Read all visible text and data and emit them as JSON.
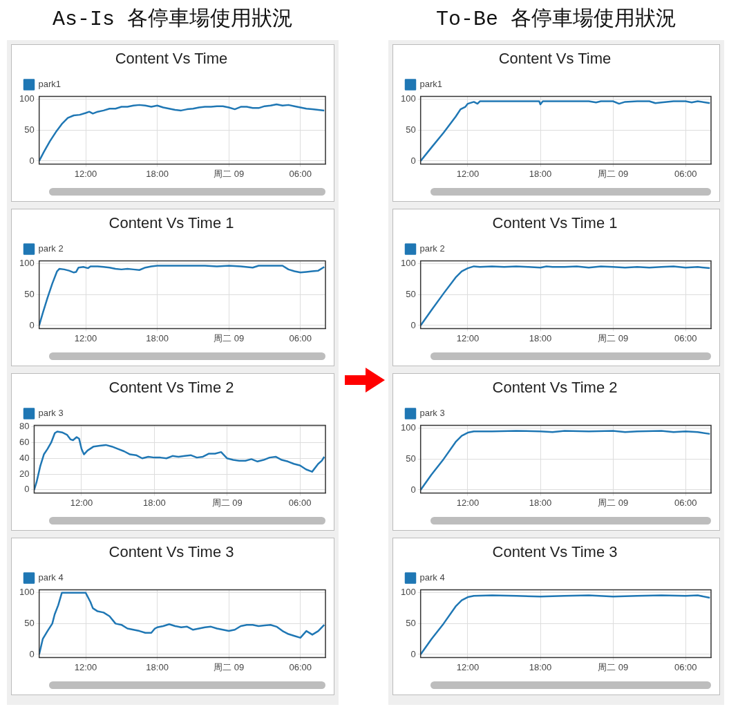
{
  "chart_data": [
    {
      "type": "line",
      "title": "Content Vs Time",
      "annotations": [
        "As-Is 各停車場使用狀況"
      ],
      "legend": "top left",
      "grid": true,
      "marker": "none",
      "line_style": "solid",
      "xlim": [
        "--04-08T08:06",
        "--04-09T08:06"
      ],
      "xticks": [
        {
          "value": "--04-08T12:00",
          "label": "12:00"
        },
        {
          "value": "--04-08T18:00",
          "label": "18:00"
        },
        {
          "value": "--04-09T00:00",
          "label": "周二 09"
        },
        {
          "value": "--04-09T06:00",
          "label": "06:00"
        }
      ],
      "ylim": [
        -5,
        105
      ],
      "yticks": [
        0,
        50,
        100
      ],
      "x": [
        "--04-08T08:06",
        "--04-08T08:30",
        "--04-08T09:00",
        "--04-08T09:30",
        "--04-08T10:00",
        "--04-08T10:30",
        "--04-08T11:00",
        "--04-08T11:30",
        "--04-08T12:00",
        "--04-08T12:18",
        "--04-08T12:36",
        "--04-08T13:00",
        "--04-08T13:30",
        "--04-08T14:00",
        "--04-08T14:30",
        "--04-08T15:00",
        "--04-08T15:30",
        "--04-08T16:00",
        "--04-08T16:30",
        "--04-08T17:00",
        "--04-08T17:30",
        "--04-08T18:00",
        "--04-08T18:30",
        "--04-08T19:00",
        "--04-08T19:30",
        "--04-08T20:00",
        "--04-08T20:30",
        "--04-08T21:00",
        "--04-08T21:30",
        "--04-08T22:00",
        "--04-08T22:30",
        "--04-08T23:00",
        "--04-08T23:30",
        "--04-09T00:00",
        "--04-09T00:30",
        "--04-09T01:00",
        "--04-09T01:30",
        "--04-09T02:00",
        "--04-09T02:30",
        "--04-09T03:00",
        "--04-09T03:30",
        "--04-09T04:00",
        "--04-09T04:30",
        "--04-09T05:00",
        "--04-09T05:30",
        "--04-09T06:00",
        "--04-09T06:30",
        "--04-09T07:00",
        "--04-09T07:30",
        "--04-09T08:00"
      ],
      "series": [
        {
          "name": "park1",
          "color": "#1f77b4",
          "values": [
            0,
            15,
            32,
            47,
            60,
            70,
            74,
            75,
            78,
            80,
            77,
            80,
            82,
            85,
            85,
            88,
            88,
            90,
            91,
            90,
            88,
            90,
            87,
            85,
            83,
            82,
            84,
            85,
            87,
            88,
            88,
            89,
            89,
            87,
            84,
            88,
            88,
            86,
            86,
            89,
            90,
            92,
            90,
            91,
            89,
            87,
            85,
            84,
            83,
            82
          ]
        }
      ]
    },
    {
      "type": "line",
      "title": "Content Vs Time 1",
      "legend": "top left",
      "grid": true,
      "marker": "none",
      "line_style": "solid",
      "xlim": [
        "--04-08T08:06",
        "--04-09T08:06"
      ],
      "xticks": [
        {
          "value": "--04-08T12:00",
          "label": "12:00"
        },
        {
          "value": "--04-08T18:00",
          "label": "18:00"
        },
        {
          "value": "--04-09T00:00",
          "label": "周二 09"
        },
        {
          "value": "--04-09T06:00",
          "label": "06:00"
        }
      ],
      "ylim": [
        -5,
        105
      ],
      "yticks": [
        0,
        50,
        100
      ],
      "x": [
        "--04-08T08:06",
        "--04-08T08:24",
        "--04-08T08:48",
        "--04-08T09:12",
        "--04-08T09:36",
        "--04-08T09:48",
        "--04-08T10:12",
        "--04-08T10:36",
        "--04-08T11:00",
        "--04-08T11:12",
        "--04-08T11:24",
        "--04-08T11:48",
        "--04-08T12:12",
        "--04-08T12:24",
        "--04-08T13:00",
        "--04-08T13:30",
        "--04-08T14:00",
        "--04-08T14:30",
        "--04-08T15:00",
        "--04-08T15:30",
        "--04-08T16:00",
        "--04-08T16:30",
        "--04-08T17:00",
        "--04-08T17:30",
        "--04-08T18:00",
        "--04-08T20:00",
        "--04-08T22:00",
        "--04-08T23:00",
        "--04-09T00:00",
        "--04-09T01:00",
        "--04-09T02:00",
        "--04-09T02:30",
        "--04-09T04:00",
        "--04-09T04:30",
        "--04-09T05:00",
        "--04-09T05:30",
        "--04-09T06:00",
        "--04-09T06:30",
        "--04-09T07:00",
        "--04-09T07:30",
        "--04-09T08:00"
      ],
      "series": [
        {
          "name": "park 2",
          "color": "#1f77b4",
          "values": [
            0,
            20,
            45,
            68,
            88,
            92,
            91,
            89,
            86,
            87,
            94,
            95,
            93,
            96,
            96,
            95,
            94,
            92,
            91,
            92,
            91,
            90,
            94,
            96,
            97,
            97,
            97,
            96,
            97,
            96,
            94,
            97,
            97,
            97,
            91,
            88,
            86,
            87,
            88,
            89,
            95
          ]
        }
      ]
    },
    {
      "type": "line",
      "title": "Content Vs Time 2",
      "legend": "top left",
      "grid": true,
      "marker": "none",
      "line_style": "solid",
      "xlim": [
        "--04-08T08:06",
        "--04-09T08:06"
      ],
      "xticks": [
        {
          "value": "--04-08T12:00",
          "label": "12:00"
        },
        {
          "value": "--04-08T18:00",
          "label": "18:00"
        },
        {
          "value": "--04-09T00:00",
          "label": "周二 09"
        },
        {
          "value": "--04-09T06:00",
          "label": "06:00"
        }
      ],
      "ylim": [
        -4,
        82
      ],
      "yticks": [
        0,
        20,
        40,
        60,
        80
      ],
      "x": [
        "--04-08T08:06",
        "--04-08T08:18",
        "--04-08T08:36",
        "--04-08T08:54",
        "--04-08T09:12",
        "--04-08T09:30",
        "--04-08T09:48",
        "--04-08T10:00",
        "--04-08T10:24",
        "--04-08T10:48",
        "--04-08T11:06",
        "--04-08T11:18",
        "--04-08T11:36",
        "--04-08T11:48",
        "--04-08T12:00",
        "--04-08T12:12",
        "--04-08T12:30",
        "--04-08T13:00",
        "--04-08T13:30",
        "--04-08T14:00",
        "--04-08T14:30",
        "--04-08T15:00",
        "--04-08T15:30",
        "--04-08T16:00",
        "--04-08T16:30",
        "--04-08T17:00",
        "--04-08T17:30",
        "--04-08T18:00",
        "--04-08T18:30",
        "--04-08T19:00",
        "--04-08T19:30",
        "--04-08T20:00",
        "--04-08T20:30",
        "--04-08T21:00",
        "--04-08T21:30",
        "--04-08T22:00",
        "--04-08T22:30",
        "--04-08T23:00",
        "--04-08T23:30",
        "--04-09T00:00",
        "--04-09T00:30",
        "--04-09T01:00",
        "--04-09T01:30",
        "--04-09T02:00",
        "--04-09T02:30",
        "--04-09T03:00",
        "--04-09T03:30",
        "--04-09T04:00",
        "--04-09T04:30",
        "--04-09T05:00",
        "--04-09T05:30",
        "--04-09T06:00",
        "--04-09T06:30",
        "--04-09T07:00",
        "--04-09T07:30",
        "--04-09T07:48",
        "--04-09T08:00"
      ],
      "series": [
        {
          "name": "park 3",
          "color": "#1f77b4",
          "values": [
            0,
            10,
            30,
            45,
            52,
            60,
            72,
            74,
            73,
            70,
            64,
            63,
            67,
            65,
            52,
            45,
            50,
            55,
            56,
            57,
            55,
            52,
            49,
            45,
            44,
            40,
            42,
            41,
            41,
            40,
            43,
            42,
            43,
            44,
            41,
            42,
            46,
            46,
            48,
            40,
            38,
            37,
            37,
            39,
            36,
            38,
            41,
            42,
            38,
            36,
            33,
            31,
            26,
            23,
            33,
            37,
            42
          ]
        }
      ]
    },
    {
      "type": "line",
      "title": "Content Vs Time 3",
      "legend": "top left",
      "grid": true,
      "marker": "none",
      "line_style": "solid",
      "xlim": [
        "--04-08T08:06",
        "--04-09T08:06"
      ],
      "xticks": [
        {
          "value": "--04-08T12:00",
          "label": "12:00"
        },
        {
          "value": "--04-08T18:00",
          "label": "18:00"
        },
        {
          "value": "--04-09T00:00",
          "label": "周二 09"
        },
        {
          "value": "--04-09T06:00",
          "label": "06:00"
        }
      ],
      "ylim": [
        -5,
        105
      ],
      "yticks": [
        0,
        50,
        100
      ],
      "x": [
        "--04-08T08:06",
        "--04-08T08:24",
        "--04-08T08:48",
        "--04-08T09:12",
        "--04-08T09:24",
        "--04-08T09:42",
        "--04-08T10:00",
        "--04-08T11:00",
        "--04-08T12:00",
        "--04-08T12:24",
        "--04-08T12:36",
        "--04-08T13:00",
        "--04-08T13:30",
        "--04-08T14:00",
        "--04-08T14:30",
        "--04-08T15:00",
        "--04-08T15:30",
        "--04-08T16:00",
        "--04-08T16:30",
        "--04-08T17:00",
        "--04-08T17:30",
        "--04-08T17:48",
        "--04-08T18:00",
        "--04-08T18:30",
        "--04-08T19:00",
        "--04-08T19:30",
        "--04-08T20:00",
        "--04-08T20:30",
        "--04-08T21:00",
        "--04-08T21:30",
        "--04-08T22:00",
        "--04-08T22:30",
        "--04-08T23:00",
        "--04-08T23:30",
        "--04-09T00:00",
        "--04-09T00:30",
        "--04-09T01:00",
        "--04-09T01:30",
        "--04-09T02:00",
        "--04-09T02:30",
        "--04-09T03:00",
        "--04-09T03:30",
        "--04-09T04:00",
        "--04-09T04:30",
        "--04-09T05:00",
        "--04-09T05:30",
        "--04-09T06:00",
        "--04-09T06:30",
        "--04-09T07:00",
        "--04-09T07:30",
        "--04-09T08:00"
      ],
      "series": [
        {
          "name": "park 4",
          "color": "#1f77b4",
          "values": [
            0,
            25,
            38,
            50,
            65,
            80,
            100,
            100,
            100,
            85,
            75,
            70,
            68,
            62,
            50,
            48,
            42,
            40,
            38,
            35,
            35,
            42,
            44,
            46,
            49,
            46,
            44,
            45,
            40,
            42,
            44,
            45,
            42,
            40,
            38,
            40,
            46,
            48,
            48,
            46,
            47,
            48,
            45,
            38,
            33,
            30,
            27,
            38,
            32,
            38,
            48
          ]
        }
      ]
    },
    {
      "type": "line",
      "title": "Content Vs Time",
      "annotations": [
        "To-Be 各停車場使用狀況"
      ],
      "legend": "top left",
      "grid": true,
      "marker": "none",
      "line_style": "solid",
      "xlim": [
        "--04-08T08:06",
        "--04-09T08:06"
      ],
      "xticks": [
        {
          "value": "--04-08T12:00",
          "label": "12:00"
        },
        {
          "value": "--04-08T18:00",
          "label": "18:00"
        },
        {
          "value": "--04-09T00:00",
          "label": "周二 09"
        },
        {
          "value": "--04-09T06:00",
          "label": "06:00"
        }
      ],
      "ylim": [
        -5,
        105
      ],
      "yticks": [
        0,
        50,
        100
      ],
      "x": [
        "--04-08T08:06",
        "--04-08T09:00",
        "--04-08T10:00",
        "--04-08T11:00",
        "--04-08T11:24",
        "--04-08T11:48",
        "--04-08T12:00",
        "--04-08T12:30",
        "--04-08T12:48",
        "--04-08T13:00",
        "--04-08T15:00",
        "--04-08T17:00",
        "--04-08T17:54",
        "--04-08T18:00",
        "--04-08T18:12",
        "--04-08T20:00",
        "--04-08T22:00",
        "--04-08T22:36",
        "--04-08T23:00",
        "--04-09T00:00",
        "--04-09T00:30",
        "--04-09T01:00",
        "--04-09T02:00",
        "--04-09T03:00",
        "--04-09T03:30",
        "--04-09T04:00",
        "--04-09T05:00",
        "--04-09T06:00",
        "--04-09T06:30",
        "--04-09T07:00",
        "--04-09T08:00"
      ],
      "series": [
        {
          "name": "park1",
          "color": "#1f77b4",
          "values": [
            0,
            22,
            46,
            72,
            84,
            88,
            93,
            96,
            93,
            97,
            97,
            97,
            97,
            92,
            97,
            97,
            97,
            95,
            97,
            97,
            93,
            96,
            97,
            97,
            94,
            95,
            97,
            97,
            95,
            97,
            94
          ]
        }
      ]
    },
    {
      "type": "line",
      "title": "Content Vs Time 1",
      "legend": "top left",
      "grid": true,
      "marker": "none",
      "line_style": "solid",
      "xlim": [
        "--04-08T08:06",
        "--04-09T08:06"
      ],
      "xticks": [
        {
          "value": "--04-08T12:00",
          "label": "12:00"
        },
        {
          "value": "--04-08T18:00",
          "label": "18:00"
        },
        {
          "value": "--04-09T00:00",
          "label": "周二 09"
        },
        {
          "value": "--04-09T06:00",
          "label": "06:00"
        }
      ],
      "ylim": [
        -5,
        105
      ],
      "yticks": [
        0,
        50,
        100
      ],
      "x": [
        "--04-08T08:06",
        "--04-08T09:00",
        "--04-08T10:00",
        "--04-08T11:00",
        "--04-08T11:30",
        "--04-08T12:00",
        "--04-08T12:30",
        "--04-08T13:00",
        "--04-08T14:00",
        "--04-08T15:00",
        "--04-08T16:00",
        "--04-08T17:00",
        "--04-08T18:00",
        "--04-08T18:30",
        "--04-08T19:00",
        "--04-08T20:00",
        "--04-08T21:00",
        "--04-08T22:00",
        "--04-08T23:00",
        "--04-09T00:00",
        "--04-09T01:00",
        "--04-09T02:00",
        "--04-09T03:00",
        "--04-09T04:00",
        "--04-09T05:00",
        "--04-09T06:00",
        "--04-09T07:00",
        "--04-09T08:00"
      ],
      "series": [
        {
          "name": "park 2",
          "color": "#1f77b4",
          "values": [
            0,
            25,
            52,
            78,
            88,
            93,
            96,
            95,
            96,
            95,
            96,
            95,
            94,
            96,
            95,
            95,
            96,
            94,
            96,
            95,
            94,
            95,
            94,
            95,
            96,
            94,
            95,
            93
          ]
        }
      ]
    },
    {
      "type": "line",
      "title": "Content Vs Time 2",
      "legend": "top left",
      "grid": true,
      "marker": "none",
      "line_style": "solid",
      "xlim": [
        "--04-08T08:06",
        "--04-09T08:06"
      ],
      "xticks": [
        {
          "value": "--04-08T12:00",
          "label": "12:00"
        },
        {
          "value": "--04-08T18:00",
          "label": "18:00"
        },
        {
          "value": "--04-09T00:00",
          "label": "周二 09"
        },
        {
          "value": "--04-09T06:00",
          "label": "06:00"
        }
      ],
      "ylim": [
        -5,
        105
      ],
      "yticks": [
        0,
        50,
        100
      ],
      "x": [
        "--04-08T08:06",
        "--04-08T09:00",
        "--04-08T10:00",
        "--04-08T11:00",
        "--04-08T11:30",
        "--04-08T12:00",
        "--04-08T12:30",
        "--04-08T14:00",
        "--04-08T16:00",
        "--04-08T18:00",
        "--04-08T19:00",
        "--04-08T20:00",
        "--04-08T22:00",
        "--04-09T00:00",
        "--04-09T01:00",
        "--04-09T02:00",
        "--04-09T04:00",
        "--04-09T05:00",
        "--04-09T06:00",
        "--04-09T07:00",
        "--04-09T08:00"
      ],
      "series": [
        {
          "name": "park 3",
          "color": "#1f77b4",
          "values": [
            0,
            25,
            50,
            78,
            88,
            93,
            95,
            95,
            96,
            95,
            94,
            96,
            95,
            96,
            94,
            95,
            96,
            94,
            95,
            94,
            91
          ]
        }
      ]
    },
    {
      "type": "line",
      "title": "Content Vs Time 3",
      "legend": "top left",
      "grid": true,
      "marker": "none",
      "line_style": "solid",
      "xlim": [
        "--04-08T08:06",
        "--04-09T08:06"
      ],
      "xticks": [
        {
          "value": "--04-08T12:00",
          "label": "12:00"
        },
        {
          "value": "--04-08T18:00",
          "label": "18:00"
        },
        {
          "value": "--04-09T00:00",
          "label": "周二 09"
        },
        {
          "value": "--04-09T06:00",
          "label": "06:00"
        }
      ],
      "ylim": [
        -5,
        105
      ],
      "yticks": [
        0,
        50,
        100
      ],
      "x": [
        "--04-08T08:06",
        "--04-08T09:00",
        "--04-08T10:00",
        "--04-08T11:00",
        "--04-08T11:30",
        "--04-08T12:00",
        "--04-08T12:30",
        "--04-08T14:00",
        "--04-08T16:00",
        "--04-08T18:00",
        "--04-08T20:00",
        "--04-08T22:00",
        "--04-09T00:00",
        "--04-09T02:00",
        "--04-09T04:00",
        "--04-09T06:00",
        "--04-09T07:00",
        "--04-09T08:00"
      ],
      "series": [
        {
          "name": "park 4",
          "color": "#1f77b4",
          "values": [
            0,
            25,
            50,
            78,
            88,
            93,
            95,
            96,
            95,
            94,
            95,
            96,
            94,
            95,
            96,
            95,
            96,
            92
          ]
        }
      ]
    }
  ]
}
